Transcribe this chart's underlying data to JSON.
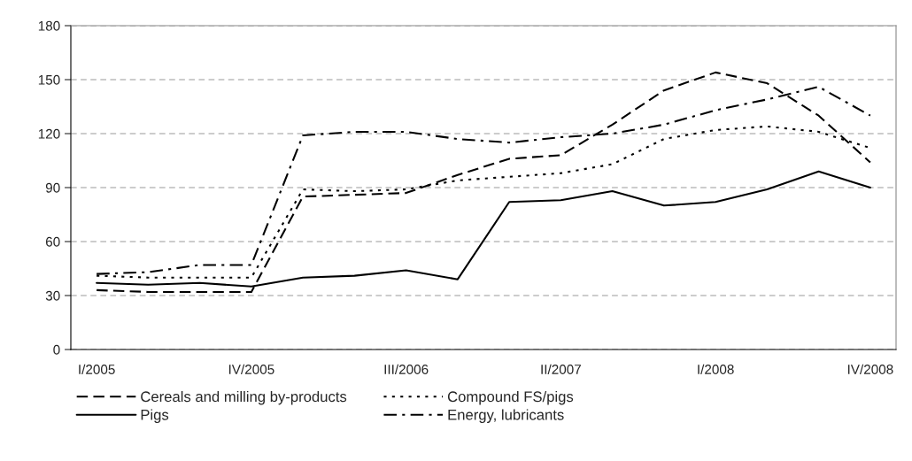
{
  "chart_data": {
    "type": "line",
    "categories": [
      "I/2005",
      null,
      null,
      "IV/2005",
      null,
      null,
      "III/2006",
      null,
      null,
      "II/2007",
      null,
      null,
      "I/2008",
      null,
      null,
      "IV/2008"
    ],
    "series": [
      {
        "name": "Cereals and milling by-products",
        "color": "#000000",
        "line_style": "dashed",
        "values": [
          33,
          32,
          32,
          32,
          85,
          86,
          87,
          97,
          106,
          108,
          125,
          144,
          154,
          148,
          130,
          104
        ]
      },
      {
        "name": "Compound FS/pigs",
        "color": "#000000",
        "line_style": "dotted",
        "values": [
          41,
          40,
          40,
          40,
          89,
          88,
          89,
          94,
          96,
          98,
          103,
          117,
          122,
          124,
          121,
          112
        ]
      },
      {
        "name": "Pigs",
        "color": "#000000",
        "line_style": "solid",
        "values": [
          37,
          36,
          37,
          35,
          40,
          41,
          44,
          39,
          82,
          83,
          88,
          80,
          82,
          89,
          99,
          90
        ]
      },
      {
        "name": "Energy, lubricants",
        "color": "#000000",
        "line_style": "dashdot",
        "values": [
          42,
          43,
          47,
          47,
          119,
          121,
          121,
          117,
          115,
          118,
          120,
          125,
          133,
          139,
          146,
          130
        ]
      }
    ],
    "ylim": [
      0,
      180
    ],
    "yticks": [
      0,
      30,
      60,
      90,
      120,
      150,
      180
    ],
    "grid": "y",
    "legend": "bottom",
    "marker": "none"
  }
}
